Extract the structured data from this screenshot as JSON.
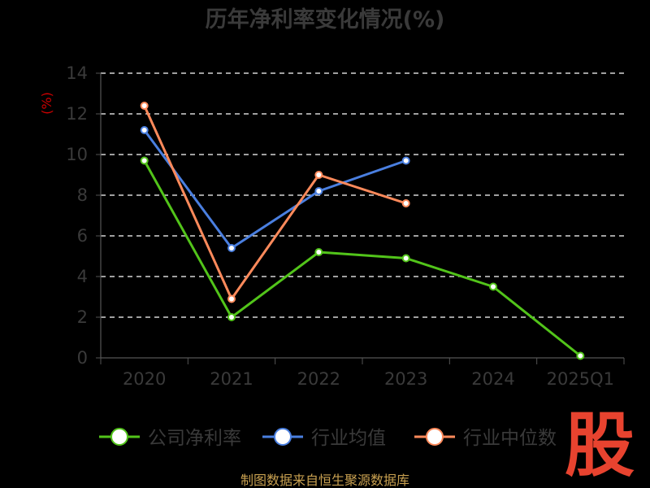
{
  "chart_data": {
    "type": "line",
    "title": "历年净利率变化情况(%)",
    "ylabel": "(%)",
    "categories": [
      "2020",
      "2021",
      "2022",
      "2023",
      "2024",
      "2025Q1"
    ],
    "ylim": [
      0,
      14
    ],
    "yticks": [
      0,
      2,
      4,
      6,
      8,
      10,
      12,
      14
    ],
    "grid": true,
    "legend_position": "bottom",
    "series": [
      {
        "name": "公司净利率",
        "color": "#52c41a",
        "values": [
          9.7,
          2.0,
          5.2,
          4.9,
          3.5,
          0.1
        ]
      },
      {
        "name": "行业均值",
        "color": "#4a7fe0",
        "values": [
          11.2,
          5.4,
          8.2,
          9.7,
          null,
          null
        ]
      },
      {
        "name": "行业中位数",
        "color": "#ff8a5b",
        "values": [
          12.4,
          2.9,
          9.0,
          7.6,
          null,
          null
        ]
      }
    ]
  },
  "source_text": "制图数据来自恒生聚源数据库",
  "watermark": "股"
}
